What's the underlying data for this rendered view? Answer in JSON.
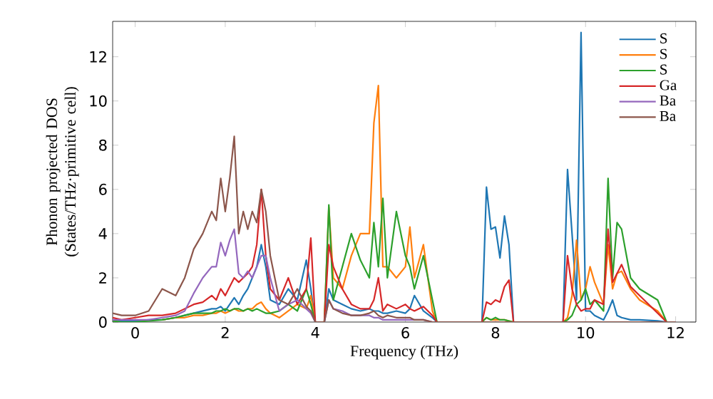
{
  "chart_data": {
    "type": "line",
    "xlabel": "Frequency (THz)",
    "ylabel": "Phonon projected DOS (States/THz·primitive cell)",
    "xlim": [
      -0.5,
      12.45
    ],
    "ylim": [
      0,
      13.6
    ],
    "xticks": [
      0,
      2,
      4,
      6,
      8,
      10,
      12
    ],
    "yticks": [
      0,
      2,
      4,
      6,
      8,
      10,
      12
    ],
    "legend": "top right",
    "x": [
      -0.5,
      -0.3,
      0,
      0.3,
      0.6,
      0.9,
      1.1,
      1.3,
      1.5,
      1.7,
      1.8,
      1.9,
      2.0,
      2.1,
      2.2,
      2.3,
      2.4,
      2.5,
      2.6,
      2.7,
      2.8,
      2.9,
      3.0,
      3.2,
      3.4,
      3.6,
      3.8,
      3.9,
      4.0,
      4.1,
      4.2,
      4.3,
      4.4,
      4.6,
      4.8,
      5.0,
      5.2,
      5.3,
      5.4,
      5.5,
      5.6,
      5.8,
      6.0,
      6.1,
      6.2,
      6.4,
      6.6,
      6.7,
      7.0,
      7.5,
      7.7,
      7.8,
      7.9,
      8.0,
      8.1,
      8.2,
      8.3,
      8.4,
      9.0,
      9.4,
      9.5,
      9.6,
      9.7,
      9.8,
      9.9,
      10.0,
      10.1,
      10.2,
      10.4,
      10.5,
      10.6,
      10.7,
      10.8,
      11.0,
      11.2,
      11.6,
      11.8,
      12.0
    ],
    "series": [
      {
        "name": "S",
        "color": "#1f77b4",
        "values": [
          0.1,
          0.05,
          0.05,
          0.1,
          0.1,
          0.2,
          0.3,
          0.4,
          0.5,
          0.6,
          0.6,
          0.7,
          0.5,
          0.8,
          1.1,
          0.8,
          1.2,
          1.5,
          2.0,
          2.5,
          3.5,
          2.5,
          1.0,
          0.8,
          1.5,
          1.0,
          2.8,
          1.5,
          0,
          0,
          0,
          1.5,
          1.0,
          0.8,
          0.6,
          0.5,
          0.6,
          0.5,
          0.5,
          0.4,
          0.4,
          0.5,
          0.4,
          0.6,
          1.2,
          0.5,
          0.2,
          0,
          0,
          0,
          0,
          6.1,
          4.2,
          4.3,
          2.9,
          4.8,
          3.5,
          0,
          0,
          0,
          0,
          6.9,
          4.0,
          1.0,
          13.1,
          0.5,
          0.5,
          0.3,
          0.1,
          0.5,
          1.0,
          0.3,
          0.2,
          0.1,
          0.1,
          0.05,
          0,
          0
        ]
      },
      {
        "name": "S",
        "color": "#ff7f0e",
        "values": [
          null,
          null,
          null,
          null,
          0.1,
          0.2,
          0.2,
          0.3,
          0.3,
          0.4,
          0.4,
          0.5,
          0.4,
          0.5,
          0.6,
          0.5,
          0.5,
          0.6,
          0.6,
          0.8,
          0.9,
          0.6,
          0.4,
          0.2,
          0.5,
          0.8,
          0.6,
          1.2,
          0,
          0,
          0,
          5.2,
          2.0,
          1.5,
          3.0,
          4.0,
          4.0,
          9.0,
          10.7,
          2.5,
          2.5,
          2.0,
          2.5,
          4.3,
          2.0,
          3.5,
          0.5,
          0,
          0,
          0,
          0,
          0.2,
          0.1,
          0.1,
          0.1,
          0.1,
          0.05,
          0,
          0,
          0,
          0,
          0.2,
          1.2,
          3.7,
          1.0,
          1.5,
          2.5,
          1.8,
          0.8,
          3.5,
          1.5,
          2.2,
          2.3,
          1.5,
          1.0,
          0.5,
          0,
          0
        ]
      },
      {
        "name": "S",
        "color": "#2ca02c",
        "values": [
          0.05,
          0,
          0,
          0.05,
          0.1,
          0.2,
          0.3,
          0.4,
          0.4,
          0.4,
          0.5,
          0.5,
          0.6,
          0.5,
          0.6,
          0.6,
          0.5,
          0.6,
          0.5,
          0.6,
          0.5,
          0.4,
          0.4,
          0.5,
          0.8,
          0.5,
          1.5,
          0.8,
          0,
          0,
          0,
          5.3,
          1.0,
          2.5,
          4.0,
          2.8,
          2.0,
          4.5,
          2.5,
          5.6,
          2.0,
          5.0,
          3.0,
          2.5,
          1.5,
          3.0,
          1.0,
          0,
          0,
          0,
          0,
          0.2,
          0.1,
          0.2,
          0.1,
          0.1,
          0.05,
          0,
          0,
          0,
          0,
          0.1,
          0.3,
          0.8,
          1.0,
          1.5,
          0.8,
          1.0,
          0.5,
          6.5,
          2.0,
          4.5,
          4.2,
          2.0,
          1.5,
          1.0,
          0,
          0
        ]
      },
      {
        "name": "Ga",
        "color": "#d62728",
        "values": [
          0.2,
          0.1,
          0.2,
          0.3,
          0.3,
          0.4,
          0.6,
          0.8,
          0.9,
          1.2,
          1.0,
          1.5,
          1.2,
          1.6,
          2.0,
          1.8,
          2.0,
          2.2,
          2.5,
          3.5,
          6.0,
          3.0,
          1.5,
          1.0,
          2.0,
          0.8,
          1.5,
          3.8,
          0,
          0,
          0,
          3.5,
          2.5,
          1.5,
          0.8,
          0.6,
          0.6,
          1.0,
          2.0,
          0.5,
          0.8,
          0.6,
          0.8,
          0.6,
          0.5,
          0.7,
          0.3,
          0,
          0,
          0,
          0,
          0.9,
          0.8,
          1.0,
          0.9,
          1.6,
          1.9,
          0,
          0,
          0,
          0,
          3.0,
          1.5,
          0.8,
          0.5,
          0.6,
          0.6,
          1.0,
          0.8,
          4.2,
          1.8,
          2.2,
          2.6,
          1.6,
          1.2,
          0.4,
          0,
          0
        ]
      },
      {
        "name": "Ba",
        "color": "#9467bd",
        "values": [
          0.1,
          0.1,
          0.1,
          0.1,
          0.2,
          0.3,
          0.5,
          1.3,
          2.0,
          2.5,
          2.5,
          3.6,
          3.0,
          3.7,
          4.2,
          2.2,
          2.0,
          2.3,
          2.0,
          2.5,
          3.0,
          3.0,
          2.0,
          0.5,
          0.8,
          1.0,
          0.6,
          0.4,
          0,
          0,
          0,
          1.0,
          0.6,
          0.5,
          0.3,
          0.3,
          0.3,
          0.2,
          0.2,
          0.1,
          0.1,
          0.1,
          0.1,
          0.1,
          0.1,
          0.1,
          0,
          0,
          0,
          0,
          0,
          0,
          0,
          0,
          0,
          0,
          0,
          0,
          0,
          0,
          0,
          0,
          0,
          0,
          0,
          0,
          0,
          0,
          0,
          0,
          0,
          0,
          0,
          0,
          0,
          0,
          0,
          0
        ]
      },
      {
        "name": "Ba",
        "color": "#8c564b",
        "values": [
          0.4,
          0.3,
          0.3,
          0.5,
          1.5,
          1.2,
          2.0,
          3.3,
          4.0,
          5.0,
          4.6,
          6.5,
          5.0,
          6.5,
          8.4,
          4.0,
          5.0,
          4.2,
          5.0,
          4.5,
          6.0,
          5.0,
          3.0,
          1.0,
          0.8,
          1.5,
          0.7,
          0.5,
          0,
          0,
          0,
          1.0,
          0.6,
          0.4,
          0.3,
          0.3,
          0.4,
          0.5,
          0.3,
          0.2,
          0.3,
          0.2,
          0.2,
          0.2,
          0.1,
          0.1,
          0,
          0,
          0,
          0,
          0,
          0,
          0,
          0,
          0,
          0,
          0,
          0,
          0,
          0,
          0,
          0,
          0,
          0,
          0,
          0,
          0,
          0,
          0,
          0,
          0,
          0,
          0,
          0,
          0,
          0,
          0,
          0
        ]
      }
    ]
  }
}
